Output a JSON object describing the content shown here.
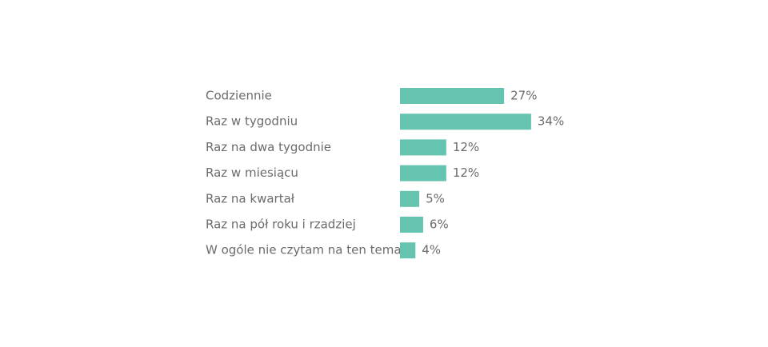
{
  "chart_data": {
    "type": "bar",
    "orientation": "horizontal",
    "color": "#64c4b0",
    "categories": [
      "Codziennie",
      "Raz w tygodniu",
      "Raz na dwa tygodnie",
      "Raz w miesiącu",
      "Raz na kwartał",
      "Raz na pół roku i rzadziej",
      "W ogóle nie czytam na ten temat"
    ],
    "values": [
      27,
      34,
      12,
      12,
      5,
      6,
      4
    ],
    "value_labels": [
      "27%",
      "34%",
      "12%",
      "12%",
      "5%",
      "6%",
      "4%"
    ]
  }
}
